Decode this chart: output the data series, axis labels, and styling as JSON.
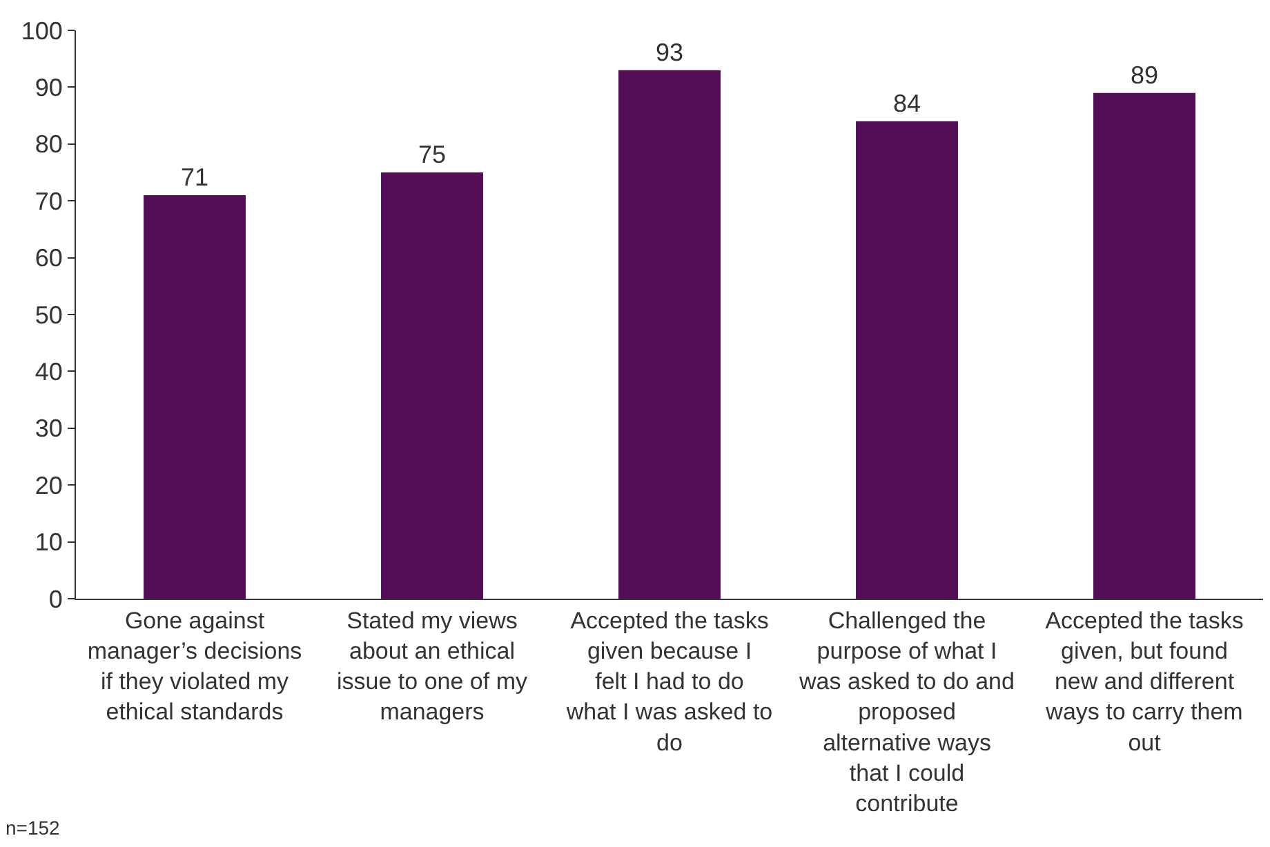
{
  "chart_data": {
    "type": "bar",
    "categories": [
      "Gone against manager’s decisions if they violated my ethical standards",
      "Stated my views about an ethical issue to one of my managers",
      "Accepted the tasks given because I felt I had to do what I was asked to do",
      "Challenged the purpose of what I was asked to do and proposed alternative ways that I could contribute",
      "Accepted the tasks given, but found new and different ways to carry them out"
    ],
    "values": [
      71,
      75,
      93,
      84,
      89
    ],
    "color": "#530d57",
    "ylim": [
      0,
      100
    ],
    "yticks": [
      0,
      10,
      20,
      30,
      40,
      50,
      60,
      70,
      80,
      90,
      100
    ],
    "data_labels": true,
    "grid": false,
    "annotations": [
      "n=152"
    ]
  }
}
